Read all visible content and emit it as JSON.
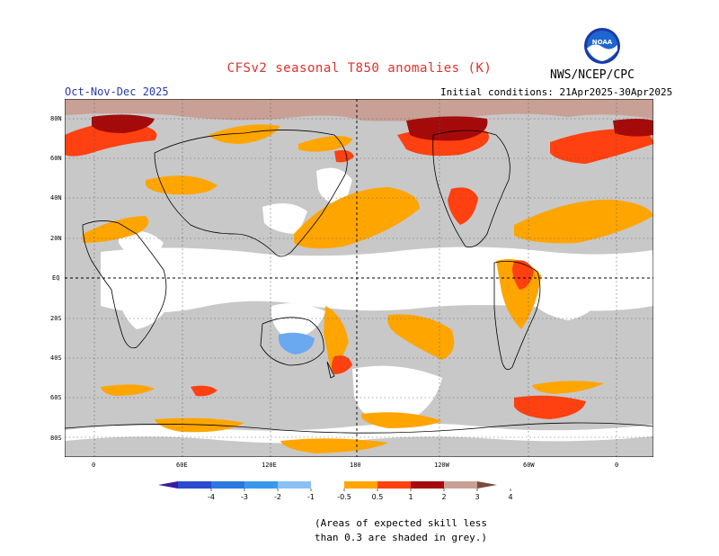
{
  "header": {
    "title": "CFSv2 seasonal T850 anomalies (K)",
    "agency": "NWS/NCEP/CPC",
    "season": "Oct-Nov-Dec 2025",
    "initial_conditions": "Initial conditions: 21Apr2025-30Apr2025",
    "logo_text": "NOAA"
  },
  "map": {
    "y_labels": [
      "80N",
      "60N",
      "40N",
      "20N",
      "EQ",
      "20S",
      "40S",
      "60S",
      "80S"
    ],
    "x_labels": [
      "0",
      "60E",
      "120E",
      "180",
      "120W",
      "60W",
      "0"
    ],
    "colors": {
      "low_skill": "#c8c8c8",
      "neutral": "#ffffff",
      "pos_0_5_1": "#ffa500",
      "pos_1_2": "#ff4010",
      "pos_2_3": "#a50a0a",
      "pos_3_4": "#c8a096",
      "neg_0_5_1": "#6aa8f0"
    }
  },
  "colorbar": {
    "tick_labels": [
      "-4",
      "-3",
      "-2",
      "-1",
      "-0.5",
      "0.5",
      "1",
      "2",
      "3",
      "4"
    ],
    "bin_colors": [
      "#3a1aa0",
      "#2a4ad0",
      "#2a78e0",
      "#3a98ea",
      "#8ac0f6",
      "#ffffff",
      "#ffa500",
      "#ff4010",
      "#a50a0a",
      "#c8a096",
      "#7a4a3a"
    ]
  },
  "footnote": {
    "line1": "(Areas of expected skill less",
    "line2": "than 0.3 are shaded in grey.)"
  }
}
